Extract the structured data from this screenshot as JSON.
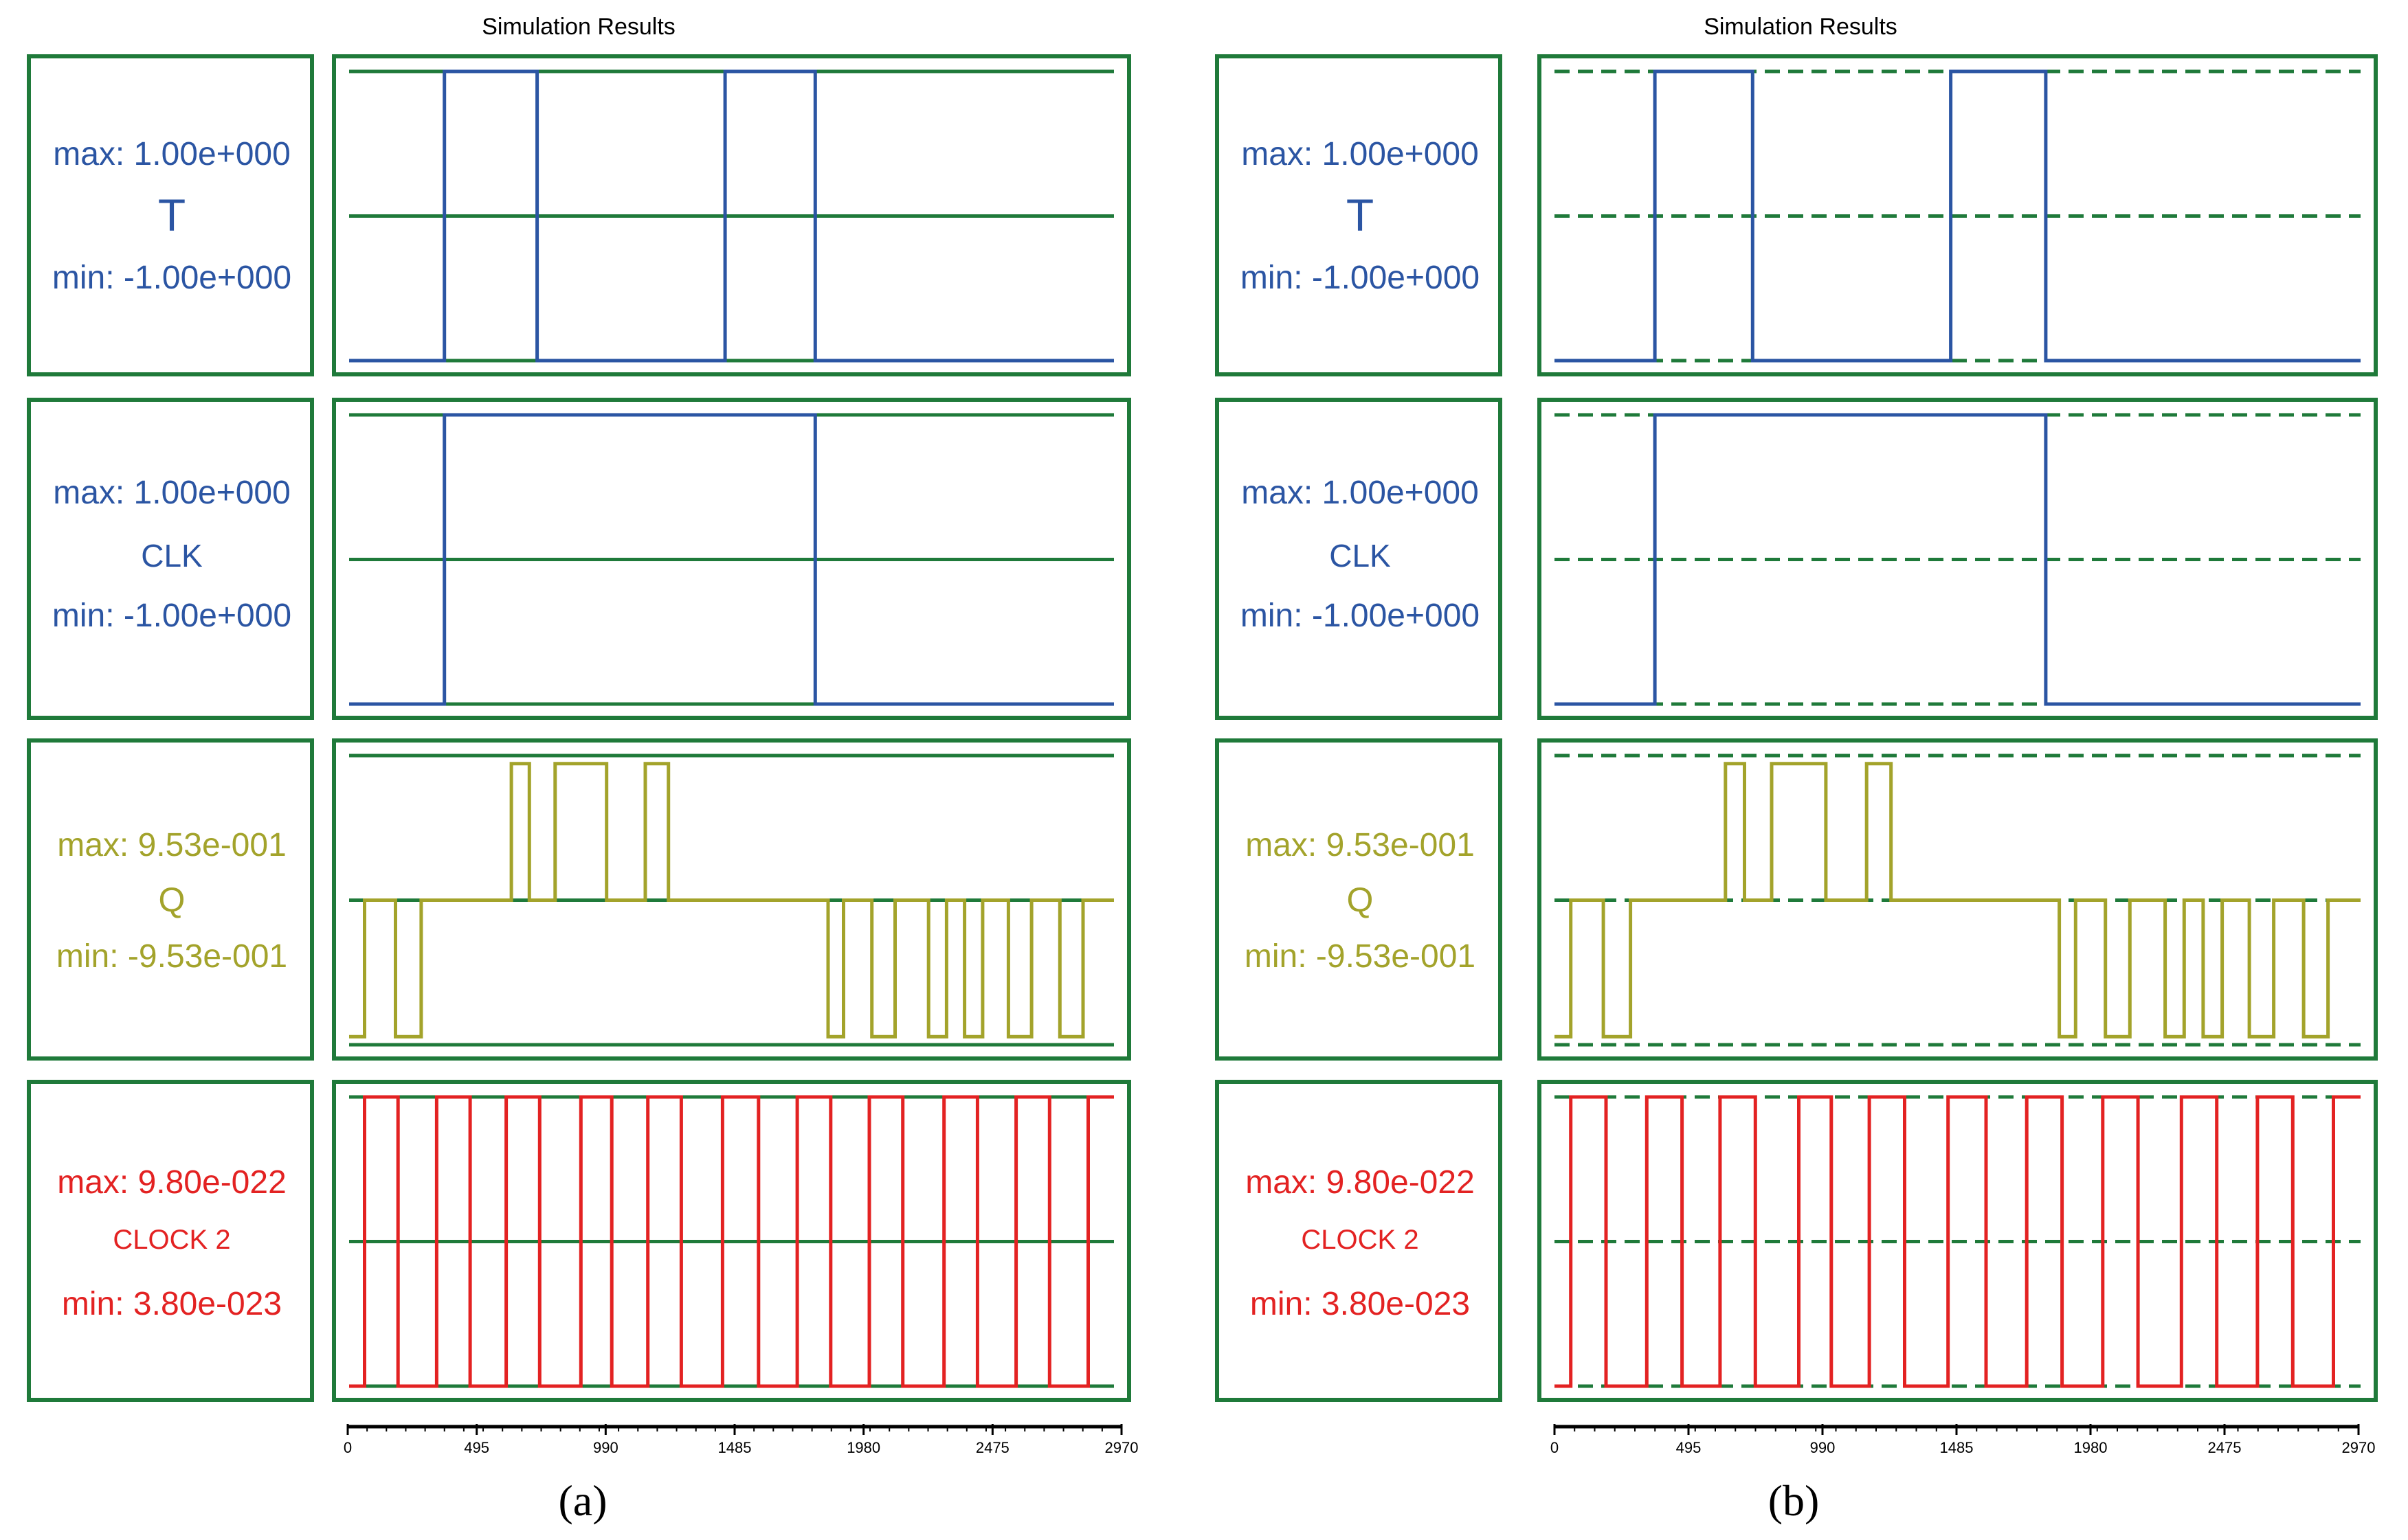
{
  "chart_data": [
    {
      "type": "line",
      "panel_label": "(a)",
      "title": "Simulation Results",
      "reference_line_style": "solid",
      "x_axis": {
        "min": 0,
        "max": 2970,
        "ticks": [
          "0",
          "495",
          "990",
          "1485",
          "1980",
          "2475",
          "2970"
        ]
      },
      "series": [
        {
          "name": "T",
          "max_label": "max: 1.00e+000",
          "min_label": "min: -1.00e+000",
          "color": "#2b55a3",
          "ylim": [
            -1,
            1
          ],
          "x": [
            0,
            370,
            370,
            730,
            730,
            1460,
            1460,
            1810,
            1810,
            2970
          ],
          "y": [
            -1,
            -1,
            1,
            1,
            -1,
            -1,
            1,
            1,
            -1,
            -1
          ]
        },
        {
          "name": "CLK",
          "max_label": "max: 1.00e+000",
          "min_label": "min: -1.00e+000",
          "color": "#2b55a3",
          "ylim": [
            -1,
            1
          ],
          "x": [
            0,
            370,
            370,
            1810,
            1810,
            2970
          ],
          "y": [
            -1,
            -1,
            1,
            1,
            -1,
            -1
          ]
        },
        {
          "name": "Q",
          "max_label": "max: 9.53e-001",
          "min_label": "min: -9.53e-001",
          "color": "#a3a32b",
          "ylim": [
            -0.953,
            0.953
          ],
          "x": [
            0,
            60,
            60,
            180,
            180,
            280,
            280,
            360,
            360,
            450,
            450,
            630,
            630,
            700,
            700,
            800,
            800,
            1000,
            1000,
            1150,
            1150,
            1240,
            1240,
            1360,
            1360,
            1490,
            1490,
            1700,
            1700,
            1860,
            1860,
            1920,
            1920,
            2030,
            2030,
            2120,
            2120,
            2250,
            2250,
            2320,
            2320,
            2390,
            2390,
            2460,
            2460,
            2560,
            2560,
            2650,
            2650,
            2760,
            2760,
            2850,
            2850,
            2970
          ],
          "y": [
            -0.9,
            -0.9,
            0,
            0,
            -0.9,
            -0.9,
            0,
            0,
            0,
            0,
            0,
            0,
            0.9,
            0.9,
            0,
            0,
            0.9,
            0.9,
            0,
            0,
            0.9,
            0.9,
            0,
            0,
            0,
            0,
            0,
            0,
            0,
            0,
            -0.9,
            -0.9,
            0,
            0,
            -0.9,
            -0.9,
            0,
            0,
            -0.9,
            -0.9,
            0,
            0,
            -0.9,
            -0.9,
            0,
            0,
            -0.9,
            -0.9,
            0,
            0,
            -0.9,
            -0.9,
            0,
            0
          ]
        },
        {
          "name": "CLOCK 2",
          "max_label": "max: 9.80e-022",
          "min_label": "min: 3.80e-023",
          "color": "#e32222",
          "ylim": [
            3.8e-23,
            9.8e-22
          ],
          "x": [
            0,
            60,
            60,
            190,
            190,
            340,
            340,
            470,
            470,
            610,
            610,
            740,
            740,
            900,
            900,
            1020,
            1020,
            1160,
            1160,
            1290,
            1290,
            1450,
            1450,
            1590,
            1590,
            1740,
            1740,
            1870,
            1870,
            2020,
            2020,
            2150,
            2150,
            2310,
            2310,
            2440,
            2440,
            2590,
            2590,
            2720,
            2720,
            2870,
            2870,
            2970
          ],
          "y": [
            3.8e-23,
            3.8e-23,
            9.8e-22,
            9.8e-22,
            3.8e-23,
            3.8e-23,
            9.8e-22,
            9.8e-22,
            3.8e-23,
            3.8e-23,
            9.8e-22,
            9.8e-22,
            3.8e-23,
            3.8e-23,
            9.8e-22,
            9.8e-22,
            3.8e-23,
            3.8e-23,
            9.8e-22,
            9.8e-22,
            3.8e-23,
            3.8e-23,
            9.8e-22,
            9.8e-22,
            3.8e-23,
            3.8e-23,
            9.8e-22,
            9.8e-22,
            3.8e-23,
            3.8e-23,
            9.8e-22,
            9.8e-22,
            3.8e-23,
            3.8e-23,
            9.8e-22,
            9.8e-22,
            3.8e-23,
            3.8e-23,
            9.8e-22,
            9.8e-22,
            3.8e-23,
            3.8e-23,
            9.8e-22,
            9.8e-22
          ]
        }
      ]
    },
    {
      "type": "line",
      "panel_label": "(b)",
      "title": "Simulation Results",
      "reference_line_style": "dashed",
      "x_axis": {
        "min": 0,
        "max": 2970,
        "ticks": [
          "0",
          "495",
          "990",
          "1485",
          "1980",
          "2475",
          "2970"
        ]
      },
      "series": [
        {
          "name": "T",
          "max_label": "max: 1.00e+000",
          "min_label": "min: -1.00e+000",
          "color": "#2b55a3",
          "ylim": [
            -1,
            1
          ],
          "x": [
            0,
            370,
            370,
            730,
            730,
            1460,
            1460,
            1810,
            1810,
            2970
          ],
          "y": [
            -1,
            -1,
            1,
            1,
            -1,
            -1,
            1,
            1,
            -1,
            -1
          ]
        },
        {
          "name": "CLK",
          "max_label": "max: 1.00e+000",
          "min_label": "min: -1.00e+000",
          "color": "#2b55a3",
          "ylim": [
            -1,
            1
          ],
          "x": [
            0,
            370,
            370,
            1810,
            1810,
            2970
          ],
          "y": [
            -1,
            -1,
            1,
            1,
            -1,
            -1
          ]
        },
        {
          "name": "Q",
          "max_label": "max: 9.53e-001",
          "min_label": "min: -9.53e-001",
          "color": "#a3a32b",
          "ylim": [
            -0.953,
            0.953
          ],
          "x": [
            0,
            60,
            60,
            180,
            180,
            280,
            280,
            360,
            360,
            450,
            450,
            630,
            630,
            700,
            700,
            800,
            800,
            1000,
            1000,
            1150,
            1150,
            1240,
            1240,
            1360,
            1360,
            1490,
            1490,
            1700,
            1700,
            1860,
            1860,
            1920,
            1920,
            2030,
            2030,
            2120,
            2120,
            2250,
            2250,
            2320,
            2320,
            2390,
            2390,
            2460,
            2460,
            2560,
            2560,
            2650,
            2650,
            2760,
            2760,
            2850,
            2850,
            2970
          ],
          "y": [
            -0.9,
            -0.9,
            0,
            0,
            -0.9,
            -0.9,
            0,
            0,
            0,
            0,
            0,
            0,
            0.9,
            0.9,
            0,
            0,
            0.9,
            0.9,
            0,
            0,
            0.9,
            0.9,
            0,
            0,
            0,
            0,
            0,
            0,
            0,
            0,
            -0.9,
            -0.9,
            0,
            0,
            -0.9,
            -0.9,
            0,
            0,
            -0.9,
            -0.9,
            0,
            0,
            -0.9,
            -0.9,
            0,
            0,
            -0.9,
            -0.9,
            0,
            0,
            -0.9,
            -0.9,
            0,
            0
          ]
        },
        {
          "name": "CLOCK 2",
          "max_label": "max: 9.80e-022",
          "min_label": "min: 3.80e-023",
          "color": "#e32222",
          "ylim": [
            3.8e-23,
            9.8e-22
          ],
          "x": [
            0,
            60,
            60,
            190,
            190,
            340,
            340,
            470,
            470,
            610,
            610,
            740,
            740,
            900,
            900,
            1020,
            1020,
            1160,
            1160,
            1290,
            1290,
            1450,
            1450,
            1590,
            1590,
            1740,
            1740,
            1870,
            1870,
            2020,
            2020,
            2150,
            2150,
            2310,
            2310,
            2440,
            2440,
            2590,
            2590,
            2720,
            2720,
            2870,
            2870,
            2970
          ],
          "y": [
            3.8e-23,
            3.8e-23,
            9.8e-22,
            9.8e-22,
            3.8e-23,
            3.8e-23,
            9.8e-22,
            9.8e-22,
            3.8e-23,
            3.8e-23,
            9.8e-22,
            9.8e-22,
            3.8e-23,
            3.8e-23,
            9.8e-22,
            9.8e-22,
            3.8e-23,
            3.8e-23,
            9.8e-22,
            9.8e-22,
            3.8e-23,
            3.8e-23,
            9.8e-22,
            9.8e-22,
            3.8e-23,
            3.8e-23,
            9.8e-22,
            9.8e-22,
            3.8e-23,
            3.8e-23,
            9.8e-22,
            9.8e-22,
            3.8e-23,
            3.8e-23,
            9.8e-22,
            9.8e-22,
            3.8e-23,
            3.8e-23,
            9.8e-22,
            9.8e-22,
            3.8e-23,
            3.8e-23,
            9.8e-22,
            9.8e-22
          ]
        }
      ]
    }
  ],
  "colors": {
    "frame": "#1f7a3a",
    "blue": "#2b55a3",
    "olive": "#a3a32b",
    "red": "#e32222"
  }
}
